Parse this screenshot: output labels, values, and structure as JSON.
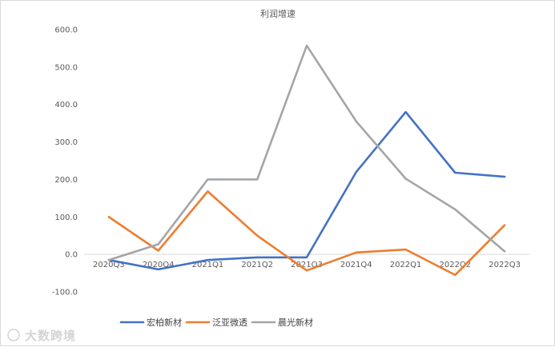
{
  "chart_data": {
    "type": "line",
    "title": "利润增速",
    "categories": [
      "2020Q3",
      "2020Q4",
      "2021Q1",
      "2021Q2",
      "2021Q3",
      "2021Q4",
      "2022Q1",
      "2022Q2",
      "2022Q3"
    ],
    "yticks": [
      "-100.0",
      "0.0",
      "100.0",
      "200.0",
      "300.0",
      "400.0",
      "500.0",
      "600.0"
    ],
    "ylim": [
      -100,
      600
    ],
    "grid": false,
    "legend_position": "bottom",
    "series": [
      {
        "name": "宏柏新材",
        "color": "#4472C4",
        "values": [
          -15,
          -40,
          -15,
          -8,
          -8,
          220,
          380,
          218,
          207
        ]
      },
      {
        "name": "泛亚微透",
        "color": "#ED7D31",
        "values": [
          100,
          10,
          168,
          50,
          -43,
          5,
          13,
          -55,
          78
        ]
      },
      {
        "name": "晨光新材",
        "color": "#A5A5A5",
        "values": [
          -15,
          27,
          200,
          200,
          557,
          355,
          202,
          120,
          8
        ]
      }
    ]
  },
  "watermark": {
    "text": "大数跨境"
  }
}
